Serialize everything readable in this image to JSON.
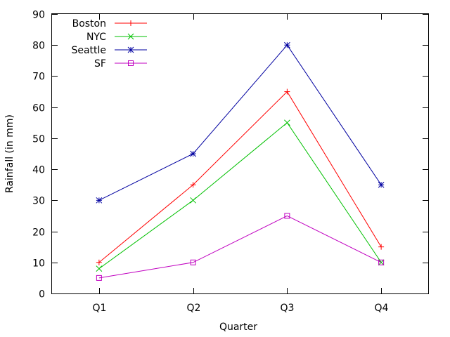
{
  "chart_data": {
    "type": "line",
    "categories": [
      "Q1",
      "Q2",
      "Q3",
      "Q4"
    ],
    "series": [
      {
        "name": "Boston",
        "values": [
          10,
          35,
          65,
          15
        ],
        "color": "#ff0000",
        "marker": "plus"
      },
      {
        "name": "NYC",
        "values": [
          8,
          30,
          55,
          10
        ],
        "color": "#00c000",
        "marker": "cross"
      },
      {
        "name": "Seattle",
        "values": [
          30,
          45,
          80,
          35
        ],
        "color": "#0000a0",
        "marker": "star"
      },
      {
        "name": "SF",
        "values": [
          5,
          10,
          25,
          10
        ],
        "color": "#c000c0",
        "marker": "square"
      }
    ],
    "title": "",
    "xlabel": "Quarter",
    "ylabel": "Rainfall (in mm)",
    "ylim": [
      0,
      90
    ],
    "yticks": [
      0,
      10,
      20,
      30,
      40,
      50,
      60,
      70,
      80,
      90
    ],
    "grid": false,
    "legend_position": "top-left"
  }
}
